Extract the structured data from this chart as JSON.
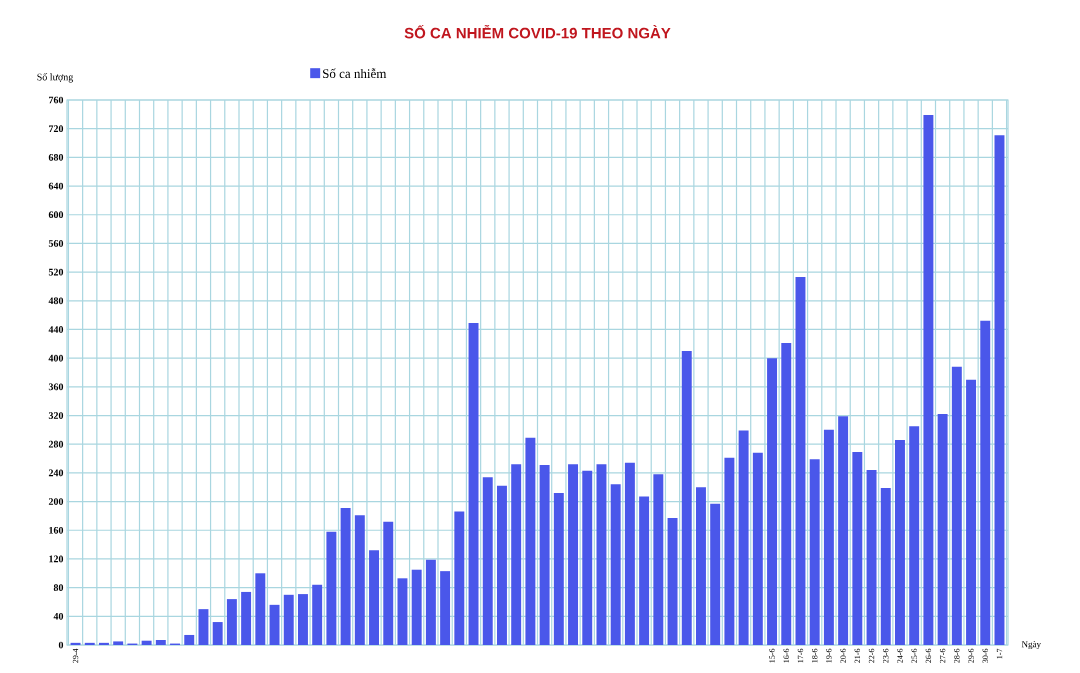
{
  "chart_data": {
    "type": "bar",
    "title": "SỐ CA NHIỄM COVID-19 THEO NGÀY",
    "xlabel": "Ngày",
    "ylabel": "Số lượng",
    "categories": [
      "29-4",
      null,
      null,
      null,
      null,
      null,
      null,
      null,
      null,
      null,
      null,
      null,
      null,
      null,
      null,
      null,
      null,
      null,
      null,
      null,
      null,
      null,
      null,
      null,
      null,
      null,
      null,
      null,
      null,
      null,
      null,
      null,
      null,
      null,
      null,
      null,
      null,
      null,
      null,
      null,
      null,
      null,
      null,
      null,
      null,
      null,
      null,
      null,
      null,
      "15-6",
      "16-6",
      "17-6",
      "18-6",
      "19-6",
      "20-6",
      "21-6",
      "22-6",
      "23-6",
      "24-6",
      "25-6",
      "26-6",
      "27-6",
      "28-6",
      "29-6",
      "30-6",
      "1-7"
    ],
    "series": [
      {
        "name": "Số ca nhiễm",
        "color": "#4a57ea",
        "values": [
          3,
          3,
          3,
          5,
          2,
          6,
          7,
          2,
          14,
          50,
          32,
          64,
          74,
          100,
          56,
          70,
          71,
          84,
          158,
          191,
          181,
          132,
          172,
          93,
          105,
          119,
          103,
          186,
          449,
          234,
          222,
          252,
          289,
          251,
          212,
          252,
          243,
          252,
          224,
          254,
          207,
          238,
          177,
          410,
          220,
          197,
          261,
          299,
          268,
          400,
          421,
          513,
          259,
          300,
          319,
          269,
          244,
          219,
          286,
          305,
          739,
          322,
          388,
          370,
          452,
          711
        ]
      }
    ],
    "ylim": [
      0,
      760
    ],
    "yticks": [
      0,
      40,
      80,
      120,
      160,
      200,
      240,
      280,
      320,
      360,
      400,
      440,
      480,
      520,
      560,
      600,
      640,
      680,
      720,
      760
    ],
    "grid": true,
    "legend": "top"
  }
}
